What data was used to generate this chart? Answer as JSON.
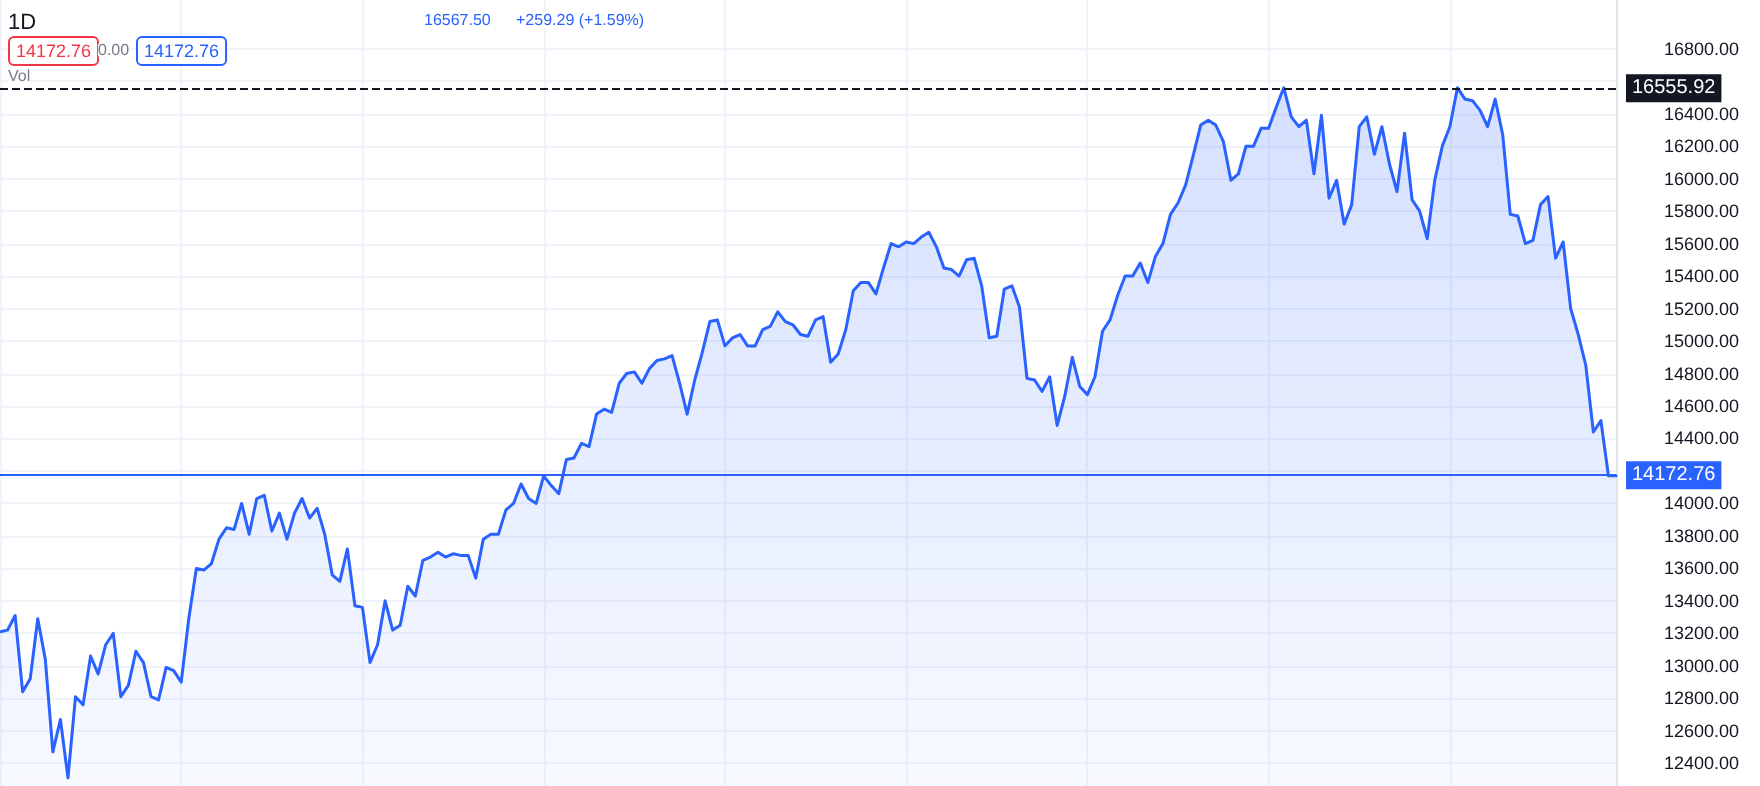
{
  "chart_data": {
    "type": "area",
    "title": "1D",
    "annotations": [
      "16567.50",
      "+259.29 (+1.59%)",
      "14172.76",
      "0.00",
      "14172.76",
      "Vol"
    ],
    "categories": [
      null,
      null,
      null,
      null,
      null,
      null,
      null,
      null,
      null,
      null,
      null,
      null,
      null,
      null,
      null,
      null,
      null,
      null,
      null,
      null,
      null,
      null,
      null,
      null,
      null,
      null,
      null,
      null,
      null,
      null,
      null,
      null,
      null,
      null,
      null,
      null,
      null,
      null,
      null,
      null,
      null,
      null,
      null,
      null,
      null,
      null,
      null,
      null,
      null,
      null,
      null,
      null,
      null,
      null,
      null,
      null,
      null,
      null,
      null,
      null,
      null,
      null,
      null,
      null,
      null,
      null,
      null,
      null,
      null,
      null,
      null,
      null,
      null,
      null,
      null,
      null,
      null,
      null,
      null,
      null,
      null,
      null,
      null,
      null,
      null,
      null,
      null,
      null,
      null,
      null,
      null,
      null,
      null,
      null,
      null,
      null,
      null,
      null,
      null,
      null,
      null,
      null,
      null,
      null,
      null,
      null,
      null,
      null,
      null,
      null,
      null,
      null,
      null,
      null,
      null,
      null,
      null,
      null,
      null,
      null,
      null,
      null,
      null,
      null,
      null,
      null,
      null,
      null,
      null,
      null,
      null,
      null,
      null,
      null,
      null,
      null,
      null,
      null,
      null,
      null,
      null,
      null,
      null,
      null,
      null,
      null,
      null,
      null,
      null,
      null,
      null,
      null,
      null,
      null,
      null,
      null,
      null,
      null,
      null,
      null,
      null,
      null,
      null,
      null,
      null,
      null,
      null,
      null,
      null,
      null,
      null,
      null,
      null,
      null,
      null,
      null,
      null,
      null,
      null,
      null,
      null,
      null,
      null,
      null,
      null,
      null,
      null,
      null,
      null,
      null,
      null,
      null,
      null,
      null,
      null,
      null,
      null,
      null,
      null,
      null,
      null,
      null,
      null,
      null,
      null,
      null,
      null,
      null,
      null,
      null,
      null,
      null,
      null,
      null,
      null
    ],
    "series": [
      {
        "color": "#2962ff",
        "values": [
          13210,
          13220,
          13310,
          12840,
          12920,
          13290,
          13040,
          12470,
          12670,
          12310,
          12810,
          12760,
          13060,
          12950,
          13130,
          13200,
          12810,
          12880,
          13090,
          13020,
          12810,
          12790,
          12990,
          12970,
          12900,
          13290,
          13600,
          13590,
          13630,
          13780,
          13850,
          13840,
          14000,
          13810,
          14030,
          14050,
          13830,
          13940,
          13780,
          13940,
          14030,
          13910,
          13970,
          13810,
          13560,
          13520,
          13720,
          13370,
          13360,
          13020,
          13130,
          13400,
          13220,
          13250,
          13490,
          13430,
          13650,
          13670,
          13700,
          13670,
          13690,
          13680,
          13680,
          13540,
          13780,
          13810,
          13810,
          13960,
          14000,
          14120,
          14030,
          14000,
          14170,
          14110,
          14060,
          14270,
          14280,
          14370,
          14350,
          14550,
          14580,
          14560,
          14740,
          14800,
          14810,
          14740,
          14830,
          14880,
          14890,
          14910,
          14740,
          14550,
          14760,
          14930,
          15120,
          15130,
          14970,
          15020,
          15040,
          14970,
          14970,
          15070,
          15090,
          15180,
          15120,
          15100,
          15040,
          15030,
          15130,
          15150,
          14870,
          14920,
          15070,
          15310,
          15360,
          15360,
          15290,
          15450,
          15600,
          15580,
          15610,
          15600,
          15640,
          15670,
          15580,
          15450,
          15440,
          15400,
          15500,
          15510,
          15340,
          15020,
          15030,
          15320,
          15340,
          15210,
          14770,
          14760,
          14690,
          14780,
          14480,
          14660,
          14900,
          14720,
          14670,
          14780,
          15060,
          15130,
          15280,
          15400,
          15400,
          15480,
          15360,
          15520,
          15600,
          15780,
          15850,
          15960,
          16140,
          16330,
          16360,
          16330,
          16230,
          15990,
          16030,
          16200,
          16200,
          16310,
          16310,
          16440,
          16560,
          16380,
          16320,
          16360,
          16030,
          16390,
          15880,
          15990,
          15720,
          15840,
          16320,
          16380,
          16150,
          16320,
          16090,
          15920,
          16280,
          15870,
          15800,
          15630,
          15990,
          16200,
          16320,
          16560,
          16490,
          16480,
          16420,
          16320,
          16490,
          16270,
          15780,
          15770,
          15600,
          15620,
          15840,
          15890,
          15510,
          15610,
          15200,
          15040,
          14850,
          14440,
          14510,
          14170,
          14170
        ]
      }
    ],
    "ylim": [
      12260,
      17100
    ],
    "yticks": [
      {
        "value": 12400,
        "label": "12400.00"
      },
      {
        "value": 12600,
        "label": "12600.00"
      },
      {
        "value": 12800,
        "label": "12800.00"
      },
      {
        "value": 13000,
        "label": "13000.00"
      },
      {
        "value": 13200,
        "label": "13200.00"
      },
      {
        "value": 13400,
        "label": "13400.00"
      },
      {
        "value": 13600,
        "label": "13600.00"
      },
      {
        "value": 13800,
        "label": "13800.00"
      },
      {
        "value": 14000,
        "label": "14000.00"
      },
      {
        "value": 14200,
        "label": null
      },
      {
        "value": 14400,
        "label": "14400.00"
      },
      {
        "value": 14600,
        "label": "14600.00"
      },
      {
        "value": 14800,
        "label": "14800.00"
      },
      {
        "value": 15000,
        "label": "15000.00"
      },
      {
        "value": 15200,
        "label": "15200.00"
      },
      {
        "value": 15400,
        "label": "15400.00"
      },
      {
        "value": 15600,
        "label": "15600.00"
      },
      {
        "value": 15800,
        "label": "15800.00"
      },
      {
        "value": 16000,
        "label": "16000.00"
      },
      {
        "value": 16200,
        "label": "16200.00"
      },
      {
        "value": 16400,
        "label": "16400.00"
      },
      {
        "value": 16600,
        "label": null
      },
      {
        "value": 16800,
        "label": "16800.00"
      }
    ],
    "ref_lines": [
      {
        "axis": "y",
        "value": 16555.92,
        "label": "16555.92",
        "color": "#131722",
        "line_style": "dashed"
      },
      {
        "axis": "y",
        "value": 14172.76,
        "label": "14172.76",
        "color": "#2962ff",
        "line_style": "solid"
      }
    ],
    "grid": true,
    "line_style": "solid",
    "tick_labels": "y"
  }
}
